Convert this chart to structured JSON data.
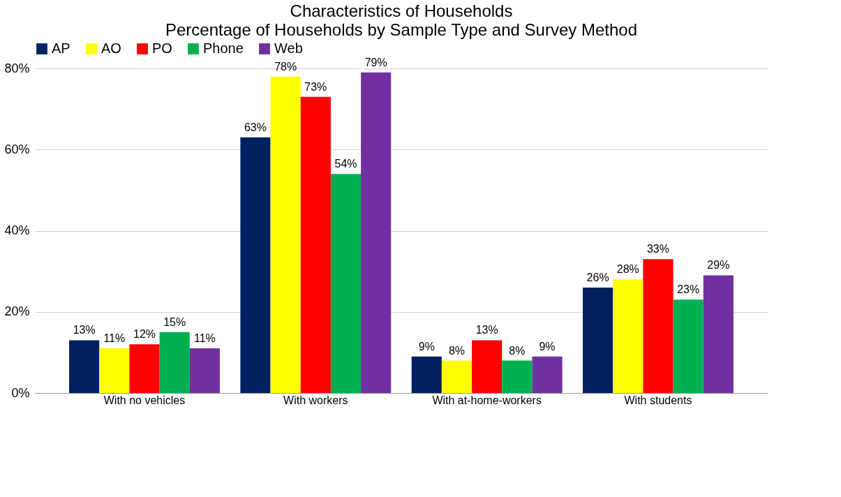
{
  "chart_data": {
    "type": "bar",
    "title": "Characteristics of Households",
    "subtitle": "Percentage of Households by Sample Type and Survey Method",
    "categories": [
      "With no vehicles",
      "With workers",
      "With at-home-workers",
      "With students"
    ],
    "series": [
      {
        "name": "AP",
        "color": "#002060",
        "values": [
          13,
          63,
          9,
          26
        ]
      },
      {
        "name": "AO",
        "color": "#ffff00",
        "values": [
          11,
          78,
          8,
          28
        ]
      },
      {
        "name": "PO",
        "color": "#ff0000",
        "values": [
          12,
          73,
          13,
          33
        ]
      },
      {
        "name": "Phone",
        "color": "#00b050",
        "values": [
          15,
          54,
          8,
          23
        ]
      },
      {
        "name": "Web",
        "color": "#7030a0",
        "values": [
          11,
          79,
          9,
          29
        ]
      }
    ],
    "ylim": [
      0,
      80
    ],
    "yticks": [
      {
        "value": 0,
        "label": "0%"
      },
      {
        "value": 20,
        "label": "20%"
      },
      {
        "value": 40,
        "label": "40%"
      },
      {
        "value": 60,
        "label": "60%"
      },
      {
        "value": 80,
        "label": "80%"
      }
    ],
    "value_labels": [
      [
        "13%",
        "63%",
        "9%",
        "26%"
      ],
      [
        "11%",
        "78%",
        "8%",
        "28%"
      ],
      [
        "12%",
        "73%",
        "13%",
        "33%"
      ],
      [
        "15%",
        "54%",
        "8%",
        "23%"
      ],
      [
        "11%",
        "79%",
        "9%",
        "29%"
      ]
    ],
    "grid": "y",
    "legend": "top"
  }
}
